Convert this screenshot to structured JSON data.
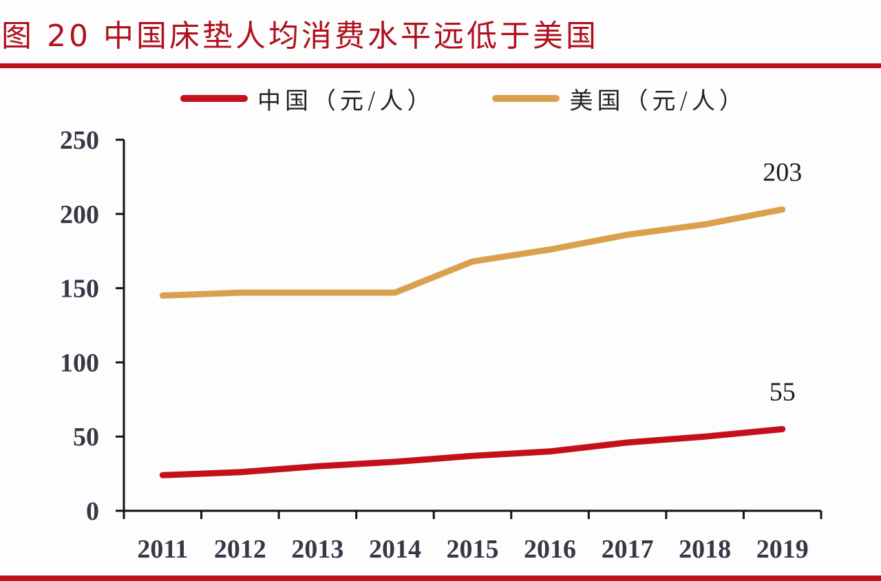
{
  "title": "图 20  中国床垫人均消费水平远低于美国",
  "colors": {
    "accent": "#c0101a",
    "china": "#c5101c",
    "usa": "#dba04e",
    "axis": "#111111",
    "text": "#3b3545"
  },
  "legend": [
    {
      "label": "中国（元/人）",
      "color": "#c5101c"
    },
    {
      "label": "美国（元/人）",
      "color": "#dba04e"
    }
  ],
  "chart_data": {
    "type": "line",
    "title": "图 20 中国床垫人均消费水平远低于美国",
    "xlabel": "",
    "ylabel": "",
    "categories": [
      "2011",
      "2012",
      "2013",
      "2014",
      "2015",
      "2016",
      "2017",
      "2018",
      "2019"
    ],
    "series": [
      {
        "name": "中国（元/人）",
        "values": [
          24,
          26,
          30,
          33,
          37,
          40,
          46,
          50,
          55
        ],
        "color": "#c5101c"
      },
      {
        "name": "美国（元/人）",
        "values": [
          145,
          147,
          147,
          147,
          168,
          176,
          186,
          193,
          203
        ],
        "color": "#dba04e"
      }
    ],
    "yticks": [
      0,
      50,
      100,
      150,
      200,
      250
    ],
    "ylim": [
      0,
      250
    ],
    "grid": false,
    "legend_position": "top",
    "annotations": [
      {
        "series": "美国（元/人）",
        "category": "2019",
        "text": "203"
      },
      {
        "series": "中国（元/人）",
        "category": "2019",
        "text": "55"
      }
    ]
  }
}
